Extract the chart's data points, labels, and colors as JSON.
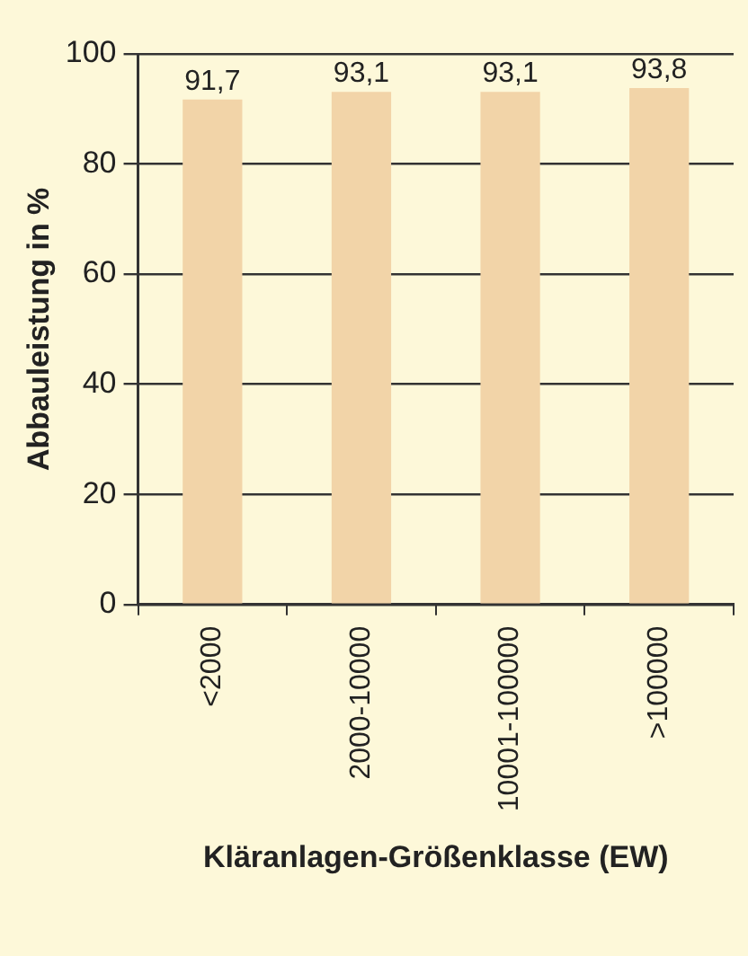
{
  "chart_data": {
    "type": "bar",
    "xlabel": "Kläranlagen-Größenklasse (EW)",
    "ylabel": "Abbauleistung in %",
    "categories": [
      "<2000",
      "2000-10000",
      "10001-100000",
      ">100000"
    ],
    "values": [
      91.7,
      93.1,
      93.1,
      93.8
    ],
    "value_labels": [
      "91,7",
      "93,1",
      "93,1",
      "93,8"
    ],
    "color": "#f2d4a8",
    "ylim": [
      0,
      100
    ],
    "yticks": [
      0,
      20,
      40,
      60,
      80,
      100
    ],
    "grid": "y"
  }
}
